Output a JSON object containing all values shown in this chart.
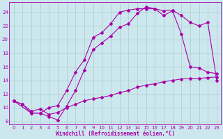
{
  "background_color": "#cce8ee",
  "line_color": "#aa00aa",
  "grid_color": "#aacccc",
  "xlabel": "Windchill (Refroidissement éolien,°C)",
  "xlabel_color": "#aa00aa",
  "xlim": [
    -0.5,
    23.5
  ],
  "ylim": [
    7.5,
    25.5
  ],
  "yticks": [
    8,
    10,
    12,
    14,
    16,
    18,
    20,
    22,
    24
  ],
  "xticks": [
    0,
    1,
    2,
    3,
    4,
    5,
    6,
    7,
    8,
    9,
    10,
    11,
    12,
    13,
    14,
    15,
    16,
    17,
    18,
    19,
    20,
    21,
    22,
    23
  ],
  "line1_x": [
    0,
    1,
    2,
    3,
    4,
    5,
    6,
    7,
    8,
    9,
    10,
    11,
    12,
    13,
    14,
    15,
    16,
    17,
    18,
    19,
    20,
    21,
    22,
    23
  ],
  "line1_y": [
    11.0,
    10.5,
    9.2,
    9.2,
    8.7,
    8.2,
    10.2,
    12.5,
    15.5,
    18.5,
    19.5,
    20.5,
    21.8,
    22.3,
    23.8,
    24.8,
    24.5,
    24.2,
    24.3,
    23.5,
    22.5,
    22.0,
    22.5,
    14.0
  ],
  "line2_x": [
    0,
    2,
    3,
    4,
    5,
    6,
    7,
    8,
    9,
    10,
    11,
    12,
    13,
    14,
    15,
    16,
    17,
    18,
    19,
    20,
    21,
    22,
    23
  ],
  "line2_y": [
    11.0,
    9.2,
    9.2,
    10.0,
    10.3,
    12.5,
    15.2,
    17.0,
    20.3,
    21.0,
    22.3,
    24.0,
    24.3,
    24.5,
    24.5,
    24.5,
    23.5,
    24.2,
    20.8,
    16.0,
    15.8,
    15.2,
    15.0
  ],
  "line3_x": [
    0,
    1,
    2,
    3,
    4,
    5,
    6,
    7,
    8,
    9,
    10,
    11,
    12,
    13,
    14,
    15,
    16,
    17,
    18,
    19,
    20,
    21,
    22,
    23
  ],
  "line3_y": [
    11.0,
    10.5,
    9.5,
    9.8,
    9.0,
    9.3,
    10.0,
    10.5,
    11.0,
    11.3,
    11.5,
    11.8,
    12.2,
    12.5,
    13.0,
    13.3,
    13.5,
    13.8,
    14.0,
    14.2,
    14.3,
    14.3,
    14.4,
    14.5
  ],
  "marker": "D",
  "markersize": 2.0,
  "linewidth": 0.8
}
